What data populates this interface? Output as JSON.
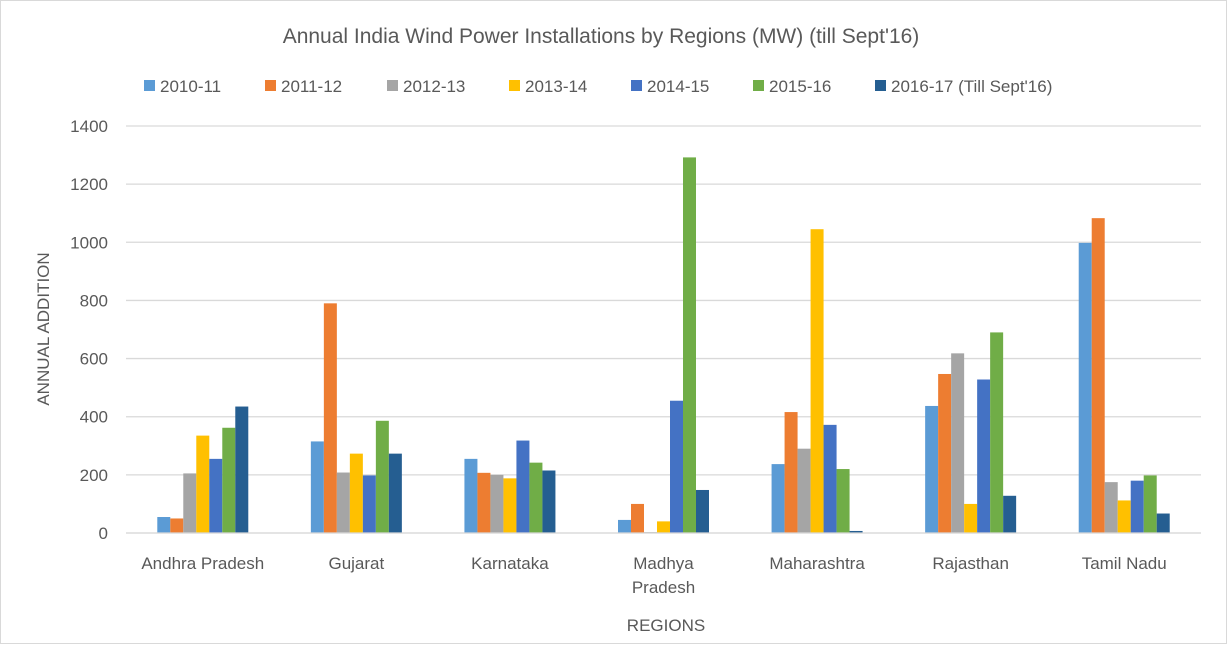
{
  "chart_data": {
    "type": "bar",
    "title": "Annual India Wind Power Installations by Regions (MW) (till Sept'16)",
    "xlabel": "REGIONS",
    "ylabel": "ANNUAL ADDITION",
    "ylim": [
      0,
      1400
    ],
    "yticks": [
      "0",
      "200",
      "400",
      "600",
      "800",
      "1000",
      "1200",
      "1400"
    ],
    "grid": true,
    "legend_position": "top",
    "categories": [
      "Andhra Pradesh",
      "Gujarat",
      "Karnataka",
      "Madhya Pradesh",
      "Maharashtra",
      "Rajasthan",
      "Tamil Nadu"
    ],
    "series": [
      {
        "name": "2010-11",
        "color": "#5b9bd5",
        "values": [
          55,
          315,
          255,
          45,
          237,
          437,
          998
        ]
      },
      {
        "name": "2011-12",
        "color": "#ed7d31",
        "values": [
          50,
          790,
          207,
          100,
          416,
          547,
          1083
        ]
      },
      {
        "name": "2012-13",
        "color": "#a5a5a5",
        "values": [
          205,
          208,
          200,
          3,
          290,
          618,
          175
        ]
      },
      {
        "name": "2013-14",
        "color": "#ffc000",
        "values": [
          335,
          273,
          188,
          40,
          1045,
          100,
          112
        ]
      },
      {
        "name": "2014-15",
        "color": "#4472c4",
        "values": [
          255,
          198,
          318,
          455,
          372,
          528,
          180
        ]
      },
      {
        "name": "2015-16",
        "color": "#70ad47",
        "values": [
          362,
          386,
          242,
          1292,
          220,
          690,
          198
        ]
      },
      {
        "name": "2016-17 (Till Sept'16)",
        "color": "#255e91",
        "values": [
          435,
          273,
          215,
          148,
          7,
          128,
          67
        ]
      }
    ]
  }
}
